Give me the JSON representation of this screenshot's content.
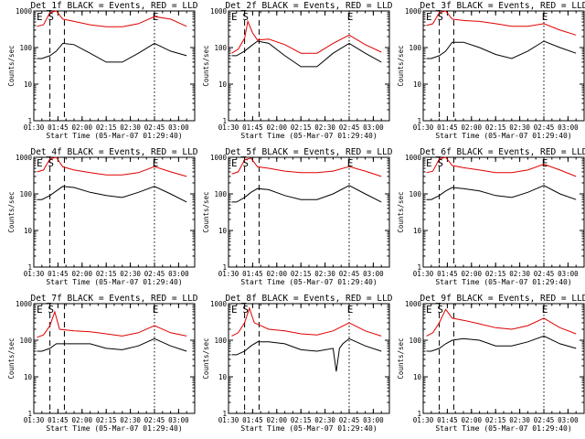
{
  "chart_data": {
    "type": "line",
    "xlabel": "Start Time (05-Mar-07 01:29:40)",
    "ylabel": "Counts/sec",
    "yscale": "log",
    "ylim": [
      1,
      1000
    ],
    "xlim": [
      "01:30",
      "03:10"
    ],
    "ytick_labels": [
      "1",
      "10",
      "100",
      "1000"
    ],
    "xtick_labels": [
      "01:30",
      "01:45",
      "02:00",
      "02:15",
      "02:30",
      "02:45",
      "03:00"
    ],
    "event_marker_labels": [
      "E",
      "S",
      "E"
    ],
    "event_markers": [
      {
        "label": "E",
        "time": "01:30"
      },
      {
        "label": "S",
        "time": "01:37"
      },
      {
        "label": "E",
        "time": "02:42"
      }
    ],
    "dashed_lines": [
      "01:40",
      "01:49"
    ],
    "dotted_line": "02:45",
    "series_colors": {
      "events": "#000000",
      "lld": "#e00000"
    },
    "panels": [
      {
        "title": "Det_1f BLACK = Events, RED = LLD",
        "events": {
          "x": [
            "01:32",
            "01:35",
            "01:40",
            "01:44",
            "01:48",
            "01:55",
            "02:05",
            "02:15",
            "02:25",
            "02:35",
            "02:45",
            "02:55",
            "03:05"
          ],
          "y": [
            50,
            50,
            60,
            80,
            130,
            120,
            70,
            40,
            40,
            70,
            130,
            80,
            60
          ]
        },
        "lld": {
          "x": [
            "01:32",
            "01:36",
            "01:40",
            "01:44",
            "01:48",
            "01:55",
            "02:05",
            "02:15",
            "02:25",
            "02:35",
            "02:45",
            "02:55",
            "03:05"
          ],
          "y": [
            380,
            420,
            900,
            1000,
            600,
            520,
            420,
            370,
            370,
            450,
            700,
            600,
            380
          ]
        }
      },
      {
        "title": "Det_2f BLACK = Events, RED = LLD",
        "events": {
          "x": [
            "01:32",
            "01:35",
            "01:40",
            "01:44",
            "01:48",
            "01:55",
            "02:05",
            "02:15",
            "02:25",
            "02:35",
            "02:45",
            "02:55",
            "03:05"
          ],
          "y": [
            60,
            60,
            80,
            110,
            150,
            130,
            60,
            30,
            30,
            70,
            130,
            70,
            40
          ]
        },
        "lld": {
          "x": [
            "01:32",
            "01:36",
            "01:40",
            "01:42",
            "01:45",
            "01:48",
            "01:55",
            "02:05",
            "02:15",
            "02:25",
            "02:35",
            "02:45",
            "02:55",
            "03:05"
          ],
          "y": [
            70,
            90,
            180,
            520,
            250,
            160,
            170,
            120,
            70,
            70,
            130,
            220,
            120,
            75
          ]
        }
      },
      {
        "title": "Det_3f BLACK = Events, RED = LLD",
        "events": {
          "x": [
            "01:32",
            "01:35",
            "01:40",
            "01:44",
            "01:48",
            "01:55",
            "02:05",
            "02:15",
            "02:25",
            "02:35",
            "02:45",
            "02:55",
            "03:05"
          ],
          "y": [
            50,
            50,
            60,
            80,
            140,
            140,
            100,
            65,
            50,
            80,
            150,
            100,
            70
          ]
        },
        "lld": {
          "x": [
            "01:32",
            "01:36",
            "01:40",
            "01:44",
            "01:48",
            "01:55",
            "02:05",
            "02:15",
            "02:25",
            "02:35",
            "02:45",
            "02:55",
            "03:05"
          ],
          "y": [
            400,
            450,
            900,
            1000,
            600,
            550,
            520,
            450,
            380,
            380,
            450,
            300,
            220
          ]
        }
      },
      {
        "title": "Det_4f BLACK = Events, RED = LLD",
        "events": {
          "x": [
            "01:32",
            "01:35",
            "01:40",
            "01:44",
            "01:48",
            "01:55",
            "02:05",
            "02:15",
            "02:25",
            "02:35",
            "02:45",
            "02:55",
            "03:05"
          ],
          "y": [
            70,
            70,
            90,
            120,
            160,
            150,
            110,
            90,
            80,
            110,
            160,
            100,
            60
          ]
        },
        "lld": {
          "x": [
            "01:32",
            "01:36",
            "01:40",
            "01:44",
            "01:48",
            "01:55",
            "02:05",
            "02:15",
            "02:25",
            "02:35",
            "02:45",
            "02:55",
            "03:05"
          ],
          "y": [
            400,
            450,
            900,
            1000,
            550,
            450,
            380,
            330,
            330,
            380,
            560,
            400,
            300
          ]
        }
      },
      {
        "title": "Det_5f BLACK = Events, RED = LLD",
        "events": {
          "x": [
            "01:32",
            "01:35",
            "01:40",
            "01:44",
            "01:48",
            "01:55",
            "02:05",
            "02:15",
            "02:25",
            "02:35",
            "02:45",
            "02:55",
            "03:05"
          ],
          "y": [
            60,
            60,
            80,
            110,
            140,
            130,
            90,
            70,
            70,
            100,
            170,
            100,
            60
          ]
        },
        "lld": {
          "x": [
            "01:32",
            "01:36",
            "01:40",
            "01:44",
            "01:48",
            "01:55",
            "02:05",
            "02:15",
            "02:25",
            "02:35",
            "02:45",
            "02:55",
            "03:05"
          ],
          "y": [
            350,
            400,
            850,
            950,
            550,
            500,
            420,
            380,
            380,
            420,
            560,
            420,
            300
          ]
        }
      },
      {
        "title": "Det_6f BLACK = Events, RED = LLD",
        "events": {
          "x": [
            "01:32",
            "01:35",
            "01:40",
            "01:44",
            "01:48",
            "01:55",
            "02:05",
            "02:15",
            "02:25",
            "02:35",
            "02:45",
            "02:55",
            "03:05"
          ],
          "y": [
            70,
            70,
            90,
            120,
            150,
            140,
            120,
            90,
            80,
            110,
            170,
            100,
            70
          ]
        },
        "lld": {
          "x": [
            "01:32",
            "01:36",
            "01:40",
            "01:44",
            "01:48",
            "01:55",
            "02:05",
            "02:15",
            "02:25",
            "02:35",
            "02:45",
            "02:55",
            "03:05"
          ],
          "y": [
            380,
            420,
            900,
            1000,
            600,
            520,
            450,
            380,
            380,
            450,
            650,
            450,
            300
          ]
        }
      },
      {
        "title": "Det_7f BLACK = Events, RED = LLD",
        "events": {
          "x": [
            "01:32",
            "01:35",
            "01:40",
            "01:44",
            "01:48",
            "01:55",
            "02:05",
            "02:15",
            "02:25",
            "02:35",
            "02:45",
            "02:55",
            "03:05"
          ],
          "y": [
            50,
            50,
            60,
            80,
            80,
            80,
            80,
            60,
            55,
            70,
            110,
            70,
            50
          ]
        },
        "lld": {
          "x": [
            "01:32",
            "01:36",
            "01:40",
            "01:43",
            "01:46",
            "01:55",
            "02:05",
            "02:15",
            "02:25",
            "02:35",
            "02:45",
            "02:55",
            "03:05"
          ],
          "y": [
            120,
            140,
            250,
            600,
            200,
            180,
            170,
            150,
            130,
            160,
            250,
            160,
            130
          ]
        }
      },
      {
        "title": "Det_8f BLACK = Events, RED = LLD",
        "events": {
          "x": [
            "01:32",
            "01:35",
            "01:40",
            "01:44",
            "01:48",
            "01:55",
            "02:05",
            "02:15",
            "02:25",
            "02:35",
            "02:37",
            "02:39",
            "02:41",
            "02:45",
            "02:55",
            "03:05"
          ],
          "y": [
            40,
            40,
            50,
            70,
            90,
            90,
            80,
            55,
            50,
            60,
            14,
            60,
            80,
            110,
            70,
            50
          ]
        },
        "lld": {
          "x": [
            "01:32",
            "01:36",
            "01:40",
            "01:43",
            "01:46",
            "01:55",
            "02:05",
            "02:15",
            "02:25",
            "02:35",
            "02:45",
            "02:55",
            "03:05"
          ],
          "y": [
            130,
            160,
            300,
            750,
            300,
            200,
            180,
            150,
            140,
            180,
            300,
            180,
            130
          ]
        }
      },
      {
        "title": "Det_9f BLACK = Events, RED = LLD",
        "events": {
          "x": [
            "01:32",
            "01:35",
            "01:40",
            "01:44",
            "01:48",
            "01:55",
            "02:05",
            "02:15",
            "02:25",
            "02:35",
            "02:45",
            "02:55",
            "03:05"
          ],
          "y": [
            50,
            50,
            60,
            80,
            100,
            110,
            100,
            70,
            70,
            90,
            130,
            80,
            60
          ]
        },
        "lld": {
          "x": [
            "01:32",
            "01:36",
            "01:40",
            "01:44",
            "01:48",
            "01:55",
            "02:05",
            "02:15",
            "02:25",
            "02:35",
            "02:45",
            "02:55",
            "03:05"
          ],
          "y": [
            130,
            160,
            300,
            700,
            400,
            350,
            280,
            220,
            200,
            250,
            400,
            220,
            150
          ]
        }
      }
    ]
  }
}
